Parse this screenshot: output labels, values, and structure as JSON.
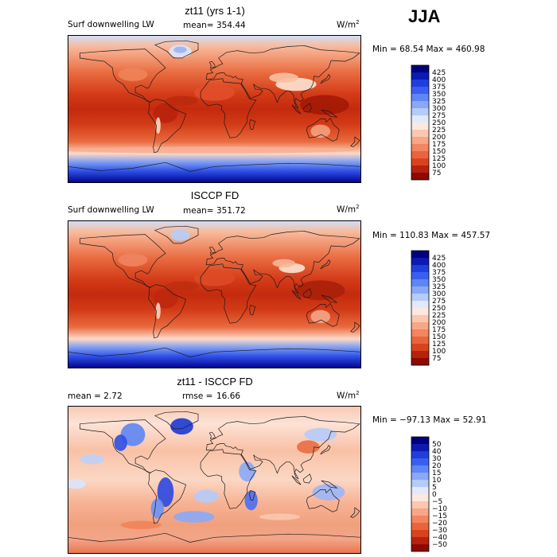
{
  "season": "JJA",
  "panels": [
    {
      "title": "zt11 (yrs 1-1)",
      "left_label": "Surf downwelling LW",
      "stat_label": "mean=",
      "stat_value": "354.44",
      "units_base": "W/m",
      "units_exp": "2",
      "minmax": "Min =  68.54 Max = 460.98",
      "colorbar": {
        "colors": [
          "#00007f",
          "#0a1ab3",
          "#1f3fdd",
          "#3a5ff0",
          "#5f86f5",
          "#8aa8f7",
          "#b5cbf9",
          "#e1e9fb",
          "#fce8df",
          "#fbc7b0",
          "#f8a685",
          "#f3855f",
          "#e9643d",
          "#d8431f",
          "#b8220c",
          "#8c0a00"
        ],
        "labels": [
          "425",
          "400",
          "375",
          "350",
          "325",
          "300",
          "275",
          "250",
          "225",
          "200",
          "175",
          "150",
          "125",
          "100",
          "75"
        ]
      }
    },
    {
      "title": "ISCCP FD",
      "left_label": "Surf downwelling LW",
      "stat_label": "mean=",
      "stat_value": "351.72",
      "units_base": "W/m",
      "units_exp": "2",
      "minmax": "Min = 110.83 Max = 457.57",
      "colorbar": {
        "colors": [
          "#00007f",
          "#0a1ab3",
          "#1f3fdd",
          "#3a5ff0",
          "#5f86f5",
          "#8aa8f7",
          "#b5cbf9",
          "#e1e9fb",
          "#fce8df",
          "#fbc7b0",
          "#f8a685",
          "#f3855f",
          "#e9643d",
          "#d8431f",
          "#b8220c",
          "#8c0a00"
        ],
        "labels": [
          "425",
          "400",
          "375",
          "350",
          "325",
          "300",
          "275",
          "250",
          "225",
          "200",
          "175",
          "150",
          "125",
          "100",
          "75"
        ]
      }
    },
    {
      "title": "zt11 - ISCCP FD",
      "left_label": "mean =   2.72",
      "stat_label": "rmse =",
      "stat_value": "16.66",
      "units_base": "W/m",
      "units_exp": "2",
      "minmax": "Min = −97.13 Max =  52.91",
      "colorbar": {
        "colors": [
          "#00007f",
          "#0a1ab3",
          "#1f3fdd",
          "#3a5ff0",
          "#5f86f5",
          "#8aa8f7",
          "#b5cbf9",
          "#e1e9fb",
          "#fce8df",
          "#fbc7b0",
          "#f8a685",
          "#f3855f",
          "#e9643d",
          "#d8431f",
          "#b8220c",
          "#8c0a00"
        ],
        "labels": [
          "50",
          "40",
          "30",
          "20",
          "15",
          "10",
          "5",
          "0",
          "−5",
          "−10",
          "−15",
          "−20",
          "−30",
          "−40",
          "−50"
        ]
      }
    }
  ],
  "chart_data": [
    {
      "type": "heatmap",
      "title": "zt11 (yrs 1-1)",
      "variable": "Surf downwelling LW",
      "units": "W/m2",
      "mean": 354.44,
      "min": 68.54,
      "max": 460.98,
      "contour_levels": [
        75,
        100,
        125,
        150,
        175,
        200,
        225,
        250,
        275,
        300,
        325,
        350,
        375,
        400,
        425
      ],
      "projection": "cylindrical equidistant (global map)"
    },
    {
      "type": "heatmap",
      "title": "ISCCP FD",
      "variable": "Surf downwelling LW",
      "units": "W/m2",
      "mean": 351.72,
      "min": 110.83,
      "max": 457.57,
      "contour_levels": [
        75,
        100,
        125,
        150,
        175,
        200,
        225,
        250,
        275,
        300,
        325,
        350,
        375,
        400,
        425
      ],
      "projection": "cylindrical equidistant (global map)"
    },
    {
      "type": "heatmap",
      "title": "zt11 - ISCCP FD",
      "units": "W/m2",
      "mean": 2.72,
      "rmse": 16.66,
      "min": -97.13,
      "max": 52.91,
      "contour_levels": [
        -50,
        -40,
        -30,
        -20,
        -15,
        -10,
        -5,
        0,
        5,
        10,
        15,
        20,
        30,
        40,
        50
      ],
      "projection": "cylindrical equidistant (global map)"
    }
  ]
}
